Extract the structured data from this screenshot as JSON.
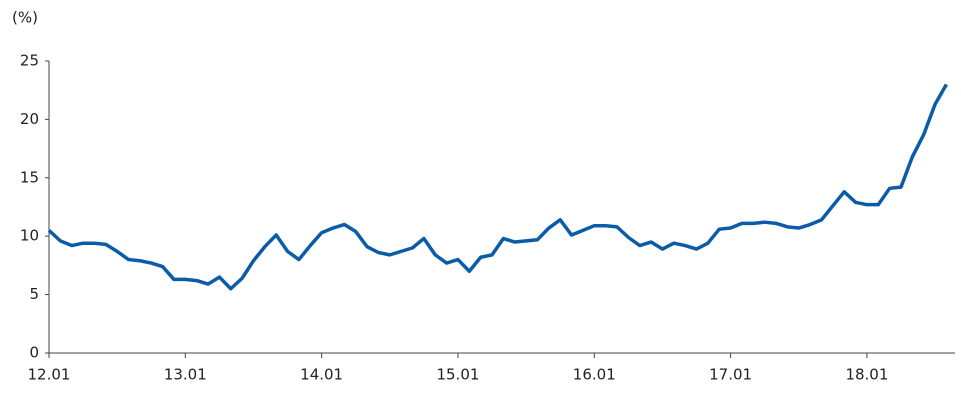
{
  "chart_data": {
    "type": "line",
    "y_label": "(%)",
    "categories": [
      "12.01",
      null,
      null,
      null,
      null,
      null,
      null,
      null,
      null,
      null,
      null,
      null,
      "13.01",
      null,
      null,
      null,
      null,
      null,
      null,
      null,
      null,
      null,
      null,
      null,
      "14.01",
      null,
      null,
      null,
      null,
      null,
      null,
      null,
      null,
      null,
      null,
      null,
      "15.01",
      null,
      null,
      null,
      null,
      null,
      null,
      null,
      null,
      null,
      null,
      null,
      "16.01",
      null,
      null,
      null,
      null,
      null,
      null,
      null,
      null,
      null,
      null,
      null,
      "17.01",
      null,
      null,
      null,
      null,
      null,
      null,
      null,
      null,
      null,
      null,
      null,
      "18.01",
      null,
      null,
      null,
      null,
      null,
      null,
      null
    ],
    "series": [
      {
        "color": "#0b5ca8",
        "values": [
          10.5,
          9.6,
          9.2,
          9.4,
          9.4,
          9.3,
          8.7,
          8.0,
          7.9,
          7.7,
          7.4,
          6.3,
          6.3,
          6.2,
          5.9,
          6.5,
          5.5,
          6.4,
          7.9,
          9.1,
          10.1,
          8.7,
          8.0,
          9.2,
          10.3,
          10.7,
          11.0,
          10.4,
          9.1,
          8.6,
          8.4,
          8.7,
          9.0,
          9.8,
          8.4,
          7.7,
          8.0,
          7.0,
          8.2,
          8.4,
          9.8,
          9.5,
          9.6,
          9.7,
          10.7,
          11.4,
          10.1,
          10.5,
          10.9,
          10.9,
          10.8,
          9.9,
          9.2,
          9.5,
          8.9,
          9.4,
          9.2,
          8.9,
          9.4,
          10.6,
          10.7,
          11.1,
          11.1,
          11.2,
          11.1,
          10.8,
          10.7,
          11.0,
          11.4,
          12.6,
          13.8,
          12.9,
          12.7,
          12.7,
          14.1,
          14.2,
          16.8,
          18.7,
          21.3,
          23.0
        ]
      }
    ],
    "ylim": [
      0,
      25
    ],
    "yticks": [
      0,
      5,
      10,
      15,
      20,
      25
    ],
    "grid": false
  }
}
